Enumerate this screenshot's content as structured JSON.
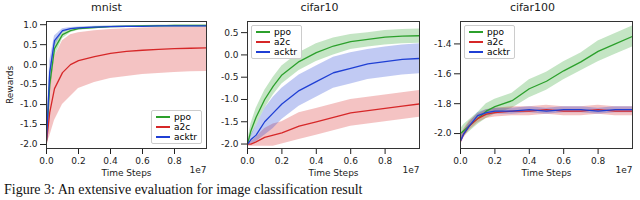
{
  "chart_data": [
    {
      "type": "line",
      "title": "mnist",
      "x_label": "Time Steps",
      "y_label": "Rewards",
      "annotations": [
        "1e7"
      ],
      "x": [
        0,
        0.02,
        0.05,
        0.1,
        0.15,
        0.2,
        0.3,
        0.4,
        0.5,
        0.6,
        0.7,
        0.8,
        0.9,
        1.0
      ],
      "xlim": [
        0,
        1.0
      ],
      "xticks": [
        {
          "value": 0,
          "label": "0.0"
        },
        0.2,
        0.4,
        0.6,
        0.8
      ],
      "ylim": [
        -2.1,
        1.08
      ],
      "yticks": [
        {
          "value": -2,
          "label": "-2.0"
        },
        -1.5,
        {
          "value": -1,
          "label": "-1.0"
        },
        -0.5,
        {
          "value": 0,
          "label": "0.0"
        },
        0.5,
        {
          "value": 1,
          "label": "1.0"
        }
      ],
      "grid": false,
      "legend": "lower right",
      "series": [
        {
          "name": "ppo",
          "color": "#2ca02c",
          "values": [
            -1.9,
            -0.5,
            0.4,
            0.75,
            0.85,
            0.9,
            0.93,
            0.95,
            0.96,
            0.97,
            0.97,
            0.98,
            0.98,
            0.98
          ],
          "lower": [
            -2.0,
            -0.9,
            0.2,
            0.65,
            0.8,
            0.86,
            0.9,
            0.93,
            0.94,
            0.95,
            0.95,
            0.96,
            0.96,
            0.96
          ],
          "upper": [
            -1.8,
            -0.2,
            0.55,
            0.82,
            0.9,
            0.93,
            0.95,
            0.97,
            0.98,
            0.98,
            0.99,
            0.99,
            0.99,
            0.99
          ]
        },
        {
          "name": "a2c",
          "color": "#d62728",
          "values": [
            -1.95,
            -1.2,
            -0.6,
            -0.2,
            0.0,
            0.1,
            0.2,
            0.28,
            0.33,
            0.36,
            0.38,
            0.4,
            0.41,
            0.42
          ],
          "lower": [
            -2.0,
            -1.8,
            -1.4,
            -1.0,
            -0.8,
            -0.6,
            -0.45,
            -0.35,
            -0.3,
            -0.25,
            -0.22,
            -0.2,
            -0.18,
            -0.17
          ],
          "upper": [
            -1.9,
            -0.6,
            0.2,
            0.6,
            0.75,
            0.8,
            0.85,
            0.88,
            0.9,
            0.92,
            0.93,
            0.94,
            0.94,
            0.95
          ]
        },
        {
          "name": "acktr",
          "color": "#1f3fd4",
          "values": [
            -1.9,
            -0.2,
            0.6,
            0.85,
            0.9,
            0.92,
            0.94,
            0.95,
            0.96,
            0.96,
            0.97,
            0.97,
            0.97,
            0.97
          ],
          "lower": [
            -2.0,
            -0.5,
            0.45,
            0.8,
            0.87,
            0.9,
            0.92,
            0.93,
            0.94,
            0.94,
            0.95,
            0.95,
            0.95,
            0.95
          ],
          "upper": [
            -1.8,
            0.1,
            0.72,
            0.9,
            0.93,
            0.94,
            0.96,
            0.97,
            0.98,
            0.98,
            0.98,
            0.98,
            0.98,
            0.98
          ]
        }
      ]
    },
    {
      "type": "line",
      "title": "cifar10",
      "x_label": "Time Steps",
      "annotations": [
        "1e7"
      ],
      "x": [
        0,
        0.02,
        0.05,
        0.1,
        0.15,
        0.2,
        0.3,
        0.4,
        0.5,
        0.6,
        0.7,
        0.8,
        0.9,
        1.0
      ],
      "xlim": [
        0,
        1.0
      ],
      "xticks": [
        {
          "value": 0,
          "label": "0.0"
        },
        0.2,
        0.4,
        0.6,
        0.8
      ],
      "ylim": [
        -2.1,
        0.75
      ],
      "yticks": [
        {
          "value": -2,
          "label": "-2.0"
        },
        -1.5,
        {
          "value": -1,
          "label": "-1.0"
        },
        -0.5,
        {
          "value": 0,
          "label": "0.0"
        },
        0.5
      ],
      "grid": false,
      "legend": "upper left",
      "series": [
        {
          "name": "ppo",
          "color": "#2ca02c",
          "values": [
            -2.0,
            -1.7,
            -1.4,
            -1.0,
            -0.7,
            -0.45,
            -0.15,
            0.05,
            0.2,
            0.3,
            0.35,
            0.4,
            0.42,
            0.43
          ],
          "lower": [
            -2.05,
            -1.85,
            -1.6,
            -1.2,
            -0.9,
            -0.65,
            -0.35,
            -0.15,
            0.0,
            0.12,
            0.18,
            0.22,
            0.25,
            0.26
          ],
          "upper": [
            -1.95,
            -1.55,
            -1.2,
            -0.8,
            -0.5,
            -0.25,
            0.05,
            0.25,
            0.38,
            0.46,
            0.5,
            0.55,
            0.57,
            0.58
          ]
        },
        {
          "name": "a2c",
          "color": "#d62728",
          "values": [
            -2.0,
            -2.0,
            -1.95,
            -1.85,
            -1.8,
            -1.75,
            -1.6,
            -1.5,
            -1.4,
            -1.3,
            -1.25,
            -1.2,
            -1.15,
            -1.1
          ],
          "lower": [
            -2.05,
            -2.05,
            -2.05,
            -2.05,
            -2.05,
            -2.0,
            -1.9,
            -1.8,
            -1.7,
            -1.6,
            -1.55,
            -1.5,
            -1.45,
            -1.4
          ],
          "upper": [
            -1.95,
            -1.95,
            -1.85,
            -1.65,
            -1.55,
            -1.5,
            -1.3,
            -1.2,
            -1.1,
            -1.0,
            -0.95,
            -0.9,
            -0.85,
            -0.8
          ]
        },
        {
          "name": "acktr",
          "color": "#1f3fd4",
          "values": [
            -2.0,
            -1.9,
            -1.8,
            -1.5,
            -1.3,
            -1.1,
            -0.8,
            -0.6,
            -0.4,
            -0.3,
            -0.2,
            -0.15,
            -0.1,
            -0.08
          ],
          "lower": [
            -2.05,
            -2.0,
            -1.95,
            -1.8,
            -1.65,
            -1.45,
            -1.15,
            -0.95,
            -0.75,
            -0.65,
            -0.55,
            -0.5,
            -0.45,
            -0.42
          ],
          "upper": [
            -1.95,
            -1.8,
            -1.6,
            -1.2,
            -0.95,
            -0.75,
            -0.45,
            -0.25,
            -0.05,
            0.05,
            0.12,
            0.18,
            0.22,
            0.25
          ]
        }
      ]
    },
    {
      "type": "line",
      "title": "cifar100",
      "x_label": "Time Steps",
      "annotations": [
        "1e7"
      ],
      "x": [
        0,
        0.02,
        0.05,
        0.1,
        0.15,
        0.2,
        0.3,
        0.4,
        0.5,
        0.6,
        0.7,
        0.8,
        0.9,
        1.0
      ],
      "xlim": [
        0,
        1.0
      ],
      "xticks": [
        {
          "value": 0,
          "label": "0.0"
        },
        0.2,
        0.4,
        0.6,
        0.8
      ],
      "ylim": [
        -2.1,
        -1.25
      ],
      "yticks": [
        {
          "value": -2,
          "label": "-2.0"
        },
        -1.8,
        -1.6,
        -1.4
      ],
      "grid": false,
      "legend": "upper left",
      "series": [
        {
          "name": "ppo",
          "color": "#2ca02c",
          "values": [
            -2.0,
            -1.98,
            -1.95,
            -1.9,
            -1.85,
            -1.82,
            -1.78,
            -1.7,
            -1.65,
            -1.58,
            -1.52,
            -1.45,
            -1.4,
            -1.35
          ],
          "lower": [
            -2.03,
            -2.02,
            -1.99,
            -1.94,
            -1.9,
            -1.87,
            -1.83,
            -1.76,
            -1.71,
            -1.64,
            -1.58,
            -1.52,
            -1.47,
            -1.42
          ],
          "upper": [
            -1.97,
            -1.94,
            -1.91,
            -1.86,
            -1.8,
            -1.77,
            -1.73,
            -1.64,
            -1.59,
            -1.52,
            -1.46,
            -1.38,
            -1.33,
            -1.28
          ]
        },
        {
          "name": "a2c",
          "color": "#d62728",
          "values": [
            -2.05,
            -2.0,
            -1.95,
            -1.9,
            -1.87,
            -1.86,
            -1.85,
            -1.85,
            -1.84,
            -1.85,
            -1.85,
            -1.84,
            -1.85,
            -1.85
          ],
          "lower": [
            -2.08,
            -2.03,
            -1.98,
            -1.93,
            -1.9,
            -1.89,
            -1.88,
            -1.88,
            -1.87,
            -1.88,
            -1.88,
            -1.87,
            -1.88,
            -1.88
          ],
          "upper": [
            -2.02,
            -1.97,
            -1.92,
            -1.87,
            -1.84,
            -1.83,
            -1.82,
            -1.82,
            -1.81,
            -1.82,
            -1.82,
            -1.81,
            -1.82,
            -1.82
          ]
        },
        {
          "name": "acktr",
          "color": "#1f3fd4",
          "values": [
            -2.05,
            -2.0,
            -1.95,
            -1.88,
            -1.86,
            -1.85,
            -1.85,
            -1.84,
            -1.85,
            -1.84,
            -1.84,
            -1.85,
            -1.84,
            -1.84
          ],
          "lower": [
            -2.07,
            -2.02,
            -1.97,
            -1.9,
            -1.88,
            -1.87,
            -1.87,
            -1.86,
            -1.87,
            -1.86,
            -1.86,
            -1.87,
            -1.86,
            -1.86
          ],
          "upper": [
            -2.03,
            -1.98,
            -1.93,
            -1.86,
            -1.84,
            -1.83,
            -1.83,
            -1.82,
            -1.83,
            -1.82,
            -1.82,
            -1.83,
            -1.82,
            -1.82
          ]
        }
      ]
    }
  ],
  "caption": "Figure 3: An extensive evaluation for image classification result"
}
